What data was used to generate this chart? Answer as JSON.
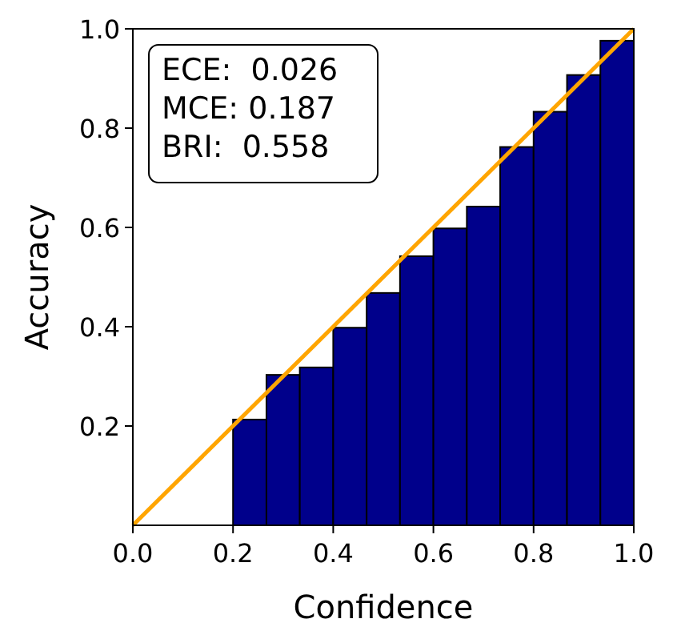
{
  "chart_data": {
    "type": "histogram",
    "xlabel": "Confidence",
    "ylabel": "Accuracy",
    "bins": [
      0.2,
      0.2667,
      0.3333,
      0.4,
      0.4667,
      0.5333,
      0.6,
      0.6667,
      0.7333,
      0.8,
      0.8667,
      0.9333,
      1.0
    ],
    "series": [
      {
        "color": "#00008b",
        "values": [
          0.213,
          0.303,
          0.318,
          0.398,
          0.468,
          0.542,
          0.598,
          0.642,
          0.762,
          0.833,
          0.907,
          0.976
        ]
      },
      {
        "type": "line",
        "color": "#ffa500",
        "x": [
          0,
          1
        ],
        "values": [
          0,
          1
        ]
      }
    ],
    "xlim": [
      0,
      1
    ],
    "ylim": [
      0,
      1
    ],
    "xticks": [
      {
        "value": 0,
        "label": "0.0"
      },
      {
        "value": 0.2,
        "label": "0.2"
      },
      {
        "value": 0.4,
        "label": "0.4"
      },
      {
        "value": 0.6,
        "label": "0.6"
      },
      {
        "value": 0.8,
        "label": "0.8"
      },
      {
        "value": 1,
        "label": "1.0"
      }
    ],
    "yticks": [
      {
        "value": 0.2,
        "label": "0.2"
      },
      {
        "value": 0.4,
        "label": "0.4"
      },
      {
        "value": 0.6,
        "label": "0.6"
      },
      {
        "value": 0.8,
        "label": "0.8"
      },
      {
        "value": 1,
        "label": "1.0"
      }
    ],
    "annotations": [
      "ECE:  0.026",
      "MCE: 0.187",
      "BRI:  0.558"
    ],
    "grid": false,
    "marker": "none",
    "line_style": "solid"
  }
}
